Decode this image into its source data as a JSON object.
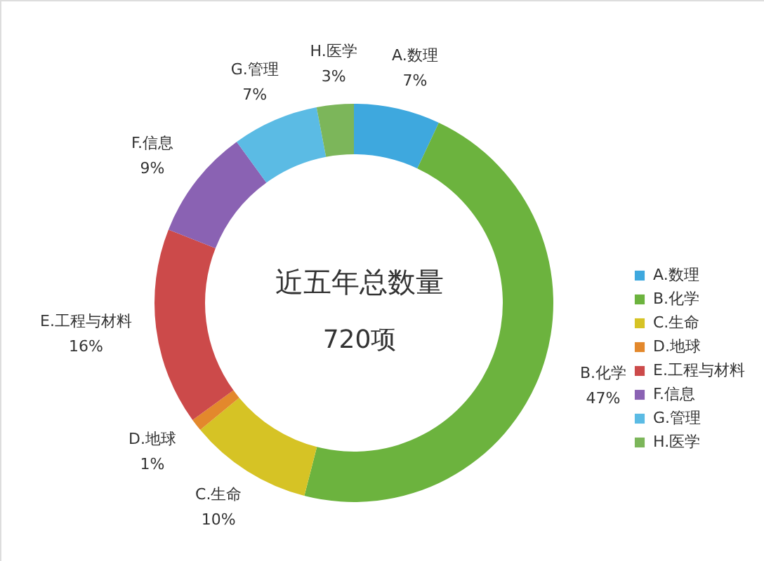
{
  "chart_data": {
    "type": "donut",
    "categories": [
      "A.数理",
      "B.化学",
      "C.生命",
      "D.地球",
      "E.工程与材料",
      "F.信息",
      "G.管理",
      "H.医学"
    ],
    "values": [
      7,
      47,
      10,
      1,
      16,
      9,
      7,
      3
    ],
    "colors": [
      "#3ea8de",
      "#6cb33e",
      "#d6c325",
      "#e3882c",
      "#cc4a4a",
      "#8a62b3",
      "#5bbbe4",
      "#7cb65a"
    ],
    "value_labels": [
      "7%",
      "47%",
      "10%",
      "1%",
      "16%",
      "9%",
      "7%",
      "3%"
    ],
    "annotations": [
      "近五年总数量",
      "720项"
    ],
    "legend": "right"
  }
}
